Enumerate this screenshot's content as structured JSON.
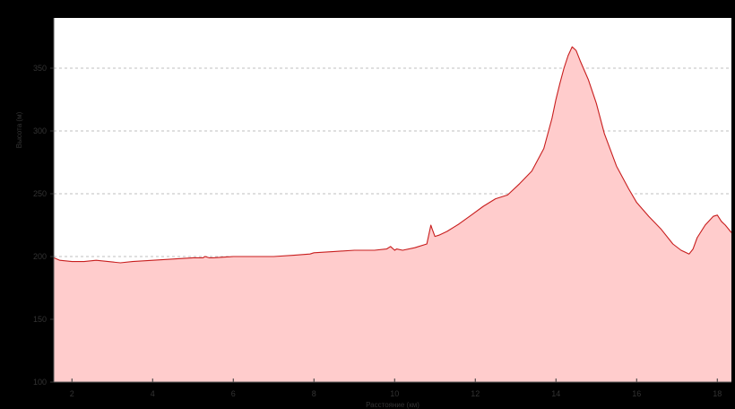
{
  "chart_data": {
    "type": "area",
    "title": "",
    "xlabel": "Расстояние (км)",
    "ylabel": "Высота (м)",
    "xlim": [
      1.55,
      18.35
    ],
    "ylim": [
      100,
      390
    ],
    "x_ticks": [
      2,
      4,
      6,
      8,
      10,
      12,
      14,
      16,
      18
    ],
    "y_ticks": [
      100,
      150,
      200,
      250,
      300,
      350
    ],
    "grid": true,
    "legend": "none",
    "colors": {
      "fill": "#ffcccc",
      "line": "#c81e1e",
      "grid": "#aaaaaa",
      "frame": "#000000",
      "plot_bg": "#ffffff"
    },
    "series": [
      {
        "x": [
          1.55,
          1.7,
          2.0,
          2.3,
          2.6,
          2.9,
          3.2,
          3.5,
          4.0,
          4.5,
          5.0,
          5.25,
          5.3,
          5.4,
          5.5,
          6.0,
          6.5,
          7.0,
          7.5,
          7.9,
          8.0,
          8.5,
          9.0,
          9.5,
          9.8,
          9.9,
          10.0,
          10.05,
          10.2,
          10.5,
          10.8,
          10.9,
          10.93,
          11.0,
          11.1,
          11.3,
          11.6,
          11.9,
          12.2,
          12.5,
          12.8,
          13.1,
          13.4,
          13.7,
          13.9,
          14.0,
          14.1,
          14.2,
          14.3,
          14.4,
          14.5,
          14.6,
          14.8,
          15.0,
          15.2,
          15.5,
          15.8,
          16.0,
          16.3,
          16.6,
          16.9,
          17.1,
          17.3,
          17.4,
          17.5,
          17.7,
          17.9,
          18.0,
          18.1,
          18.2,
          18.3,
          18.35
        ],
        "y": [
          199,
          197,
          196,
          196,
          197,
          196,
          195,
          196,
          197,
          198,
          199,
          199,
          200,
          199,
          199,
          200,
          200,
          200,
          201,
          202,
          203,
          204,
          205,
          205,
          206,
          208,
          205,
          206,
          205,
          207,
          210,
          225,
          222,
          216,
          217,
          220,
          226,
          233,
          240,
          246,
          249,
          258,
          268,
          286,
          310,
          325,
          338,
          350,
          360,
          367,
          364,
          356,
          341,
          322,
          298,
          272,
          254,
          243,
          232,
          222,
          210,
          205,
          202,
          206,
          215,
          225,
          232,
          233,
          228,
          225,
          221,
          219
        ]
      }
    ]
  }
}
